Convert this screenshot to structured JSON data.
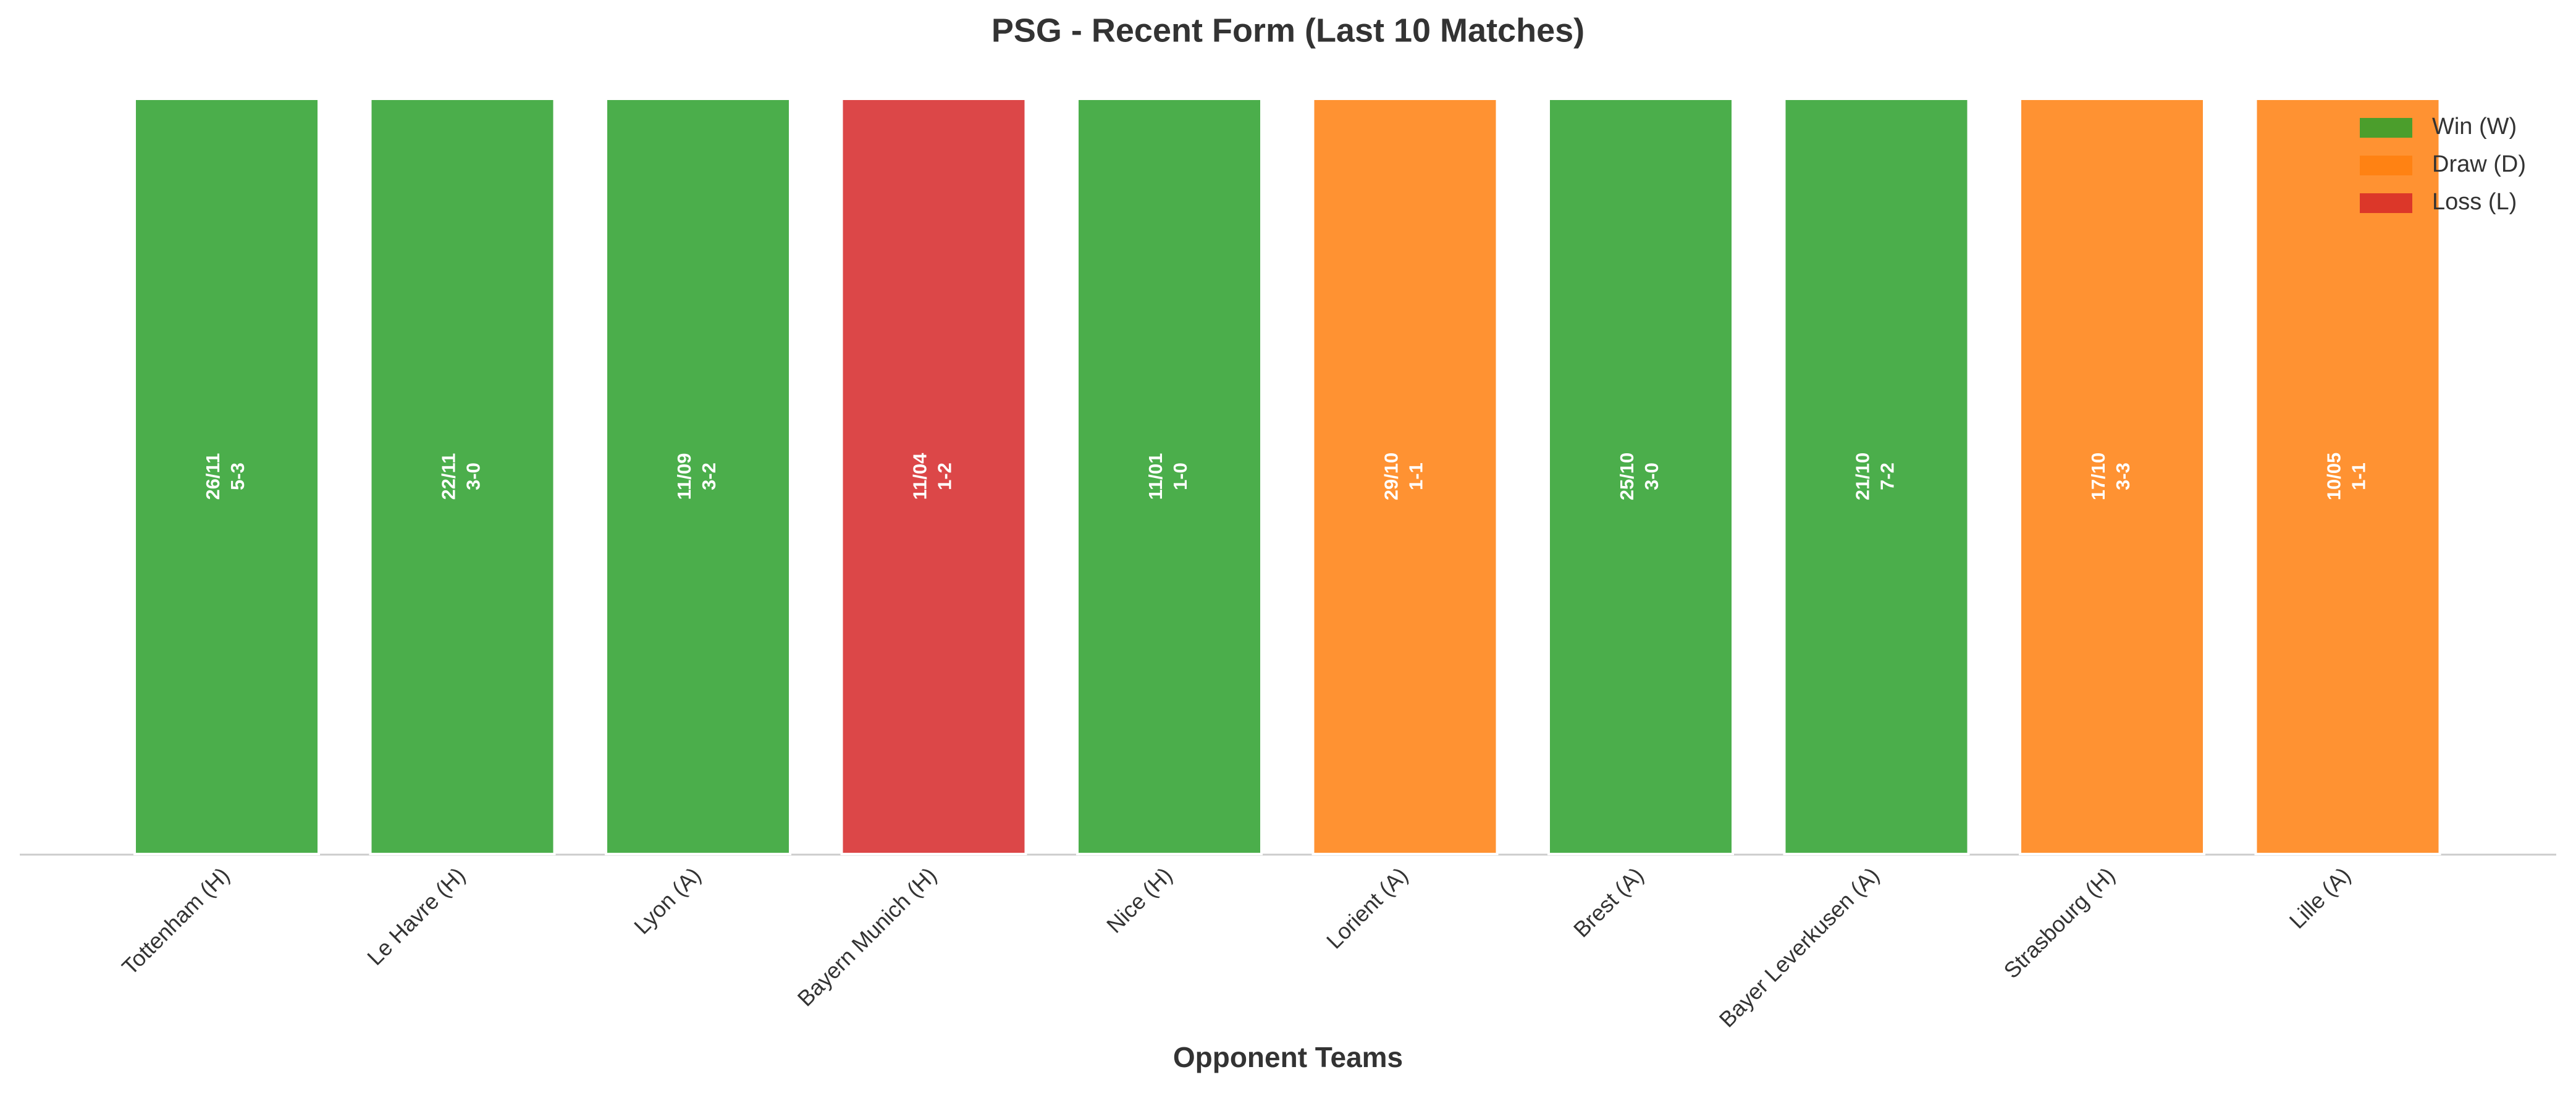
{
  "chart_data": {
    "type": "bar",
    "title": "PSG - Recent Form (Last 10 Matches)",
    "x_label": "Opponent Teams",
    "categories": [
      "Tottenham (H)",
      "Le Havre (H)",
      "Lyon (A)",
      "Bayern Munich (H)",
      "Nice (H)",
      "Lorient (A)",
      "Brest (A)",
      "Bayer Leverkusen (A)",
      "Strasbourg (H)",
      "Lille (A)"
    ],
    "values": [
      1,
      1,
      1,
      1,
      1,
      1,
      1,
      1,
      1,
      1
    ],
    "dates": [
      "26/11",
      "22/11",
      "11/09",
      "11/04",
      "11/01",
      "29/10",
      "25/10",
      "21/10",
      "17/10",
      "10/05"
    ],
    "scores": [
      "5-3",
      "3-0",
      "3-2",
      "1-2",
      "1-0",
      "1-1",
      "3-0",
      "7-2",
      "3-3",
      "1-1"
    ],
    "colors": [
      "#2ca02c",
      "#2ca02c",
      "#2ca02c",
      "#d62728",
      "#2ca02c",
      "#ff7f0e",
      "#2ca02c",
      "#2ca02c",
      "#ff7f0e",
      "#ff7f0e"
    ],
    "ylim": [
      0,
      1
    ],
    "legend_position": "upper right",
    "legend": [
      {
        "name": "Win (W)",
        "color": "#2ca02c"
      },
      {
        "name": "Draw (D)",
        "color": "#ff7f0e"
      },
      {
        "name": "Loss (L)",
        "color": "#d62728"
      }
    ]
  }
}
